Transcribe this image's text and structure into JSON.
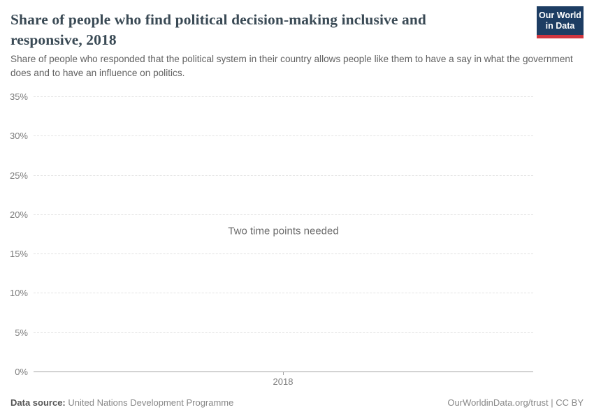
{
  "header": {
    "title": "Share of people who find political decision-making inclusive and responsive, 2018",
    "subtitle": "Share of people who responded that the political system in their country allows people like them to have a say in what the government does and to have an influence on politics.",
    "logo": {
      "line1": "Our World",
      "line2": "in Data",
      "bg_color": "#1d3d63",
      "accent_color": "#d0353f"
    }
  },
  "chart_data": {
    "type": "line",
    "title": "Share of people who find political decision-making inclusive and responsive, 2018",
    "series": [],
    "categories": [],
    "empty_message": "Two time points needed",
    "x_ticks": [
      "2018"
    ],
    "y_ticks": [
      "0%",
      "5%",
      "10%",
      "15%",
      "20%",
      "25%",
      "30%",
      "35%"
    ],
    "ylim": [
      0,
      35
    ],
    "xlabel": "",
    "ylabel": "",
    "grid": "horizontal-dashed",
    "legend": "none"
  },
  "footer": {
    "source_label": "Data source:",
    "source_value": "United Nations Development Programme",
    "rights": "OurWorldinData.org/trust | CC BY"
  }
}
